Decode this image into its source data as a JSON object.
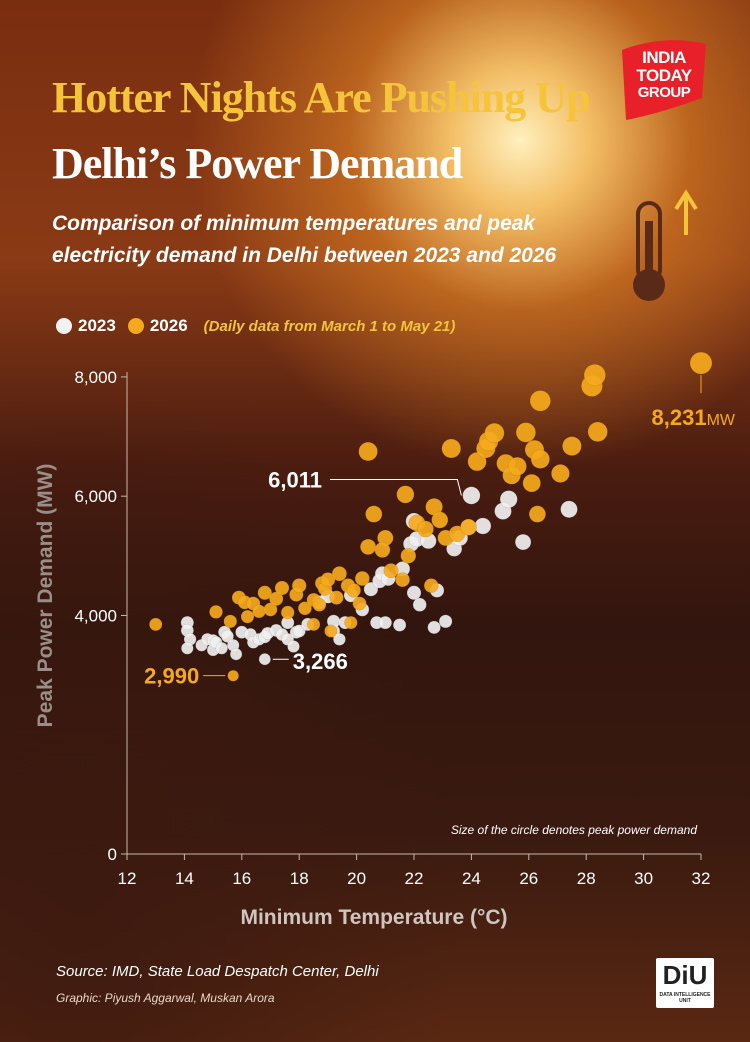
{
  "header": {
    "title_line1": "Hotter Nights Are Pushing Up",
    "title_line2": "Delhi’s Power Demand",
    "subtitle": "Comparison of minimum temperatures and peak electricity demand in Delhi between 2023 and 2026"
  },
  "brand": {
    "logo_line1": "INDIA",
    "logo_line2": "TODAY",
    "logo_line3": "GROUP",
    "logo_color": "#e8202a",
    "diu_main": "DiU",
    "diu_sub": "DATA INTELLIGENCE UNIT"
  },
  "legend": {
    "items": [
      {
        "label": "2023",
        "color": "#f2f2f2"
      },
      {
        "label": "2026",
        "color": "#f5a91c"
      }
    ],
    "note": "(Daily data from March 1 to May 21)"
  },
  "footer": {
    "source": "Source: IMD, State Load Despatch Center, Delhi",
    "credit": "Graphic: Piyush Aggarwal, Muskan Arora"
  },
  "chart_data": {
    "type": "scatter",
    "xlabel": "Minimum Temperature (°C)",
    "ylabel": "Peak Power Demand (MW)",
    "xlim": [
      12,
      32
    ],
    "ylim": [
      0,
      8250
    ],
    "x_ticks": [
      12,
      14,
      16,
      18,
      20,
      22,
      24,
      26,
      28,
      30,
      32
    ],
    "x_tick_labels": [
      "12",
      "14",
      "16",
      "18",
      "20",
      "22",
      "24",
      "26",
      "28",
      "30",
      "32"
    ],
    "y_ticks": [
      0,
      4000,
      6000,
      8000
    ],
    "y_tick_labels": [
      "0",
      "4,000",
      "6,000",
      "8,000"
    ],
    "size_note": "Size of the circle denotes peak power demand",
    "annotations": [
      {
        "x": 32.0,
        "y": 8231,
        "value": "8,231",
        "unit": "MW",
        "series": "2026"
      },
      {
        "x": 24.0,
        "y": 6011,
        "value": "6,011",
        "unit": "",
        "series": "2023"
      },
      {
        "x": 16.8,
        "y": 3266,
        "value": "3,266",
        "unit": "",
        "series": "2023"
      },
      {
        "x": 15.7,
        "y": 2990,
        "value": "2,990",
        "unit": "",
        "series": "2026"
      }
    ],
    "series": [
      {
        "name": "2023",
        "color": "#f0f0f0",
        "points": [
          [
            14.1,
            3880
          ],
          [
            14.1,
            3750
          ],
          [
            14.2,
            3600
          ],
          [
            14.1,
            3450
          ],
          [
            14.6,
            3500
          ],
          [
            14.8,
            3600
          ],
          [
            15.0,
            3580
          ],
          [
            15.0,
            3420
          ],
          [
            15.1,
            3550
          ],
          [
            15.3,
            3450
          ],
          [
            15.4,
            3720
          ],
          [
            15.5,
            3650
          ],
          [
            15.7,
            3500
          ],
          [
            15.8,
            3350
          ],
          [
            16.0,
            3720
          ],
          [
            16.3,
            3680
          ],
          [
            16.4,
            3550
          ],
          [
            16.6,
            3600
          ],
          [
            16.8,
            3640
          ],
          [
            16.9,
            3700
          ],
          [
            17.2,
            3750
          ],
          [
            17.4,
            3680
          ],
          [
            17.6,
            3880
          ],
          [
            17.6,
            3600
          ],
          [
            17.9,
            3720
          ],
          [
            17.8,
            3480
          ],
          [
            18.0,
            3740
          ],
          [
            18.3,
            3850
          ],
          [
            16.8,
            3266
          ],
          [
            18.7,
            4220
          ],
          [
            19.0,
            4320
          ],
          [
            19.2,
            3740
          ],
          [
            19.4,
            3600
          ],
          [
            19.2,
            3900
          ],
          [
            19.6,
            3880
          ],
          [
            19.8,
            4340
          ],
          [
            20.2,
            4100
          ],
          [
            20.5,
            4440
          ],
          [
            20.8,
            4580
          ],
          [
            20.7,
            3880
          ],
          [
            20.9,
            4700
          ],
          [
            21.1,
            4620
          ],
          [
            21.0,
            3880
          ],
          [
            21.5,
            3840
          ],
          [
            21.6,
            4780
          ],
          [
            21.9,
            5200
          ],
          [
            22.0,
            5580
          ],
          [
            22.1,
            5280
          ],
          [
            22.0,
            4380
          ],
          [
            22.2,
            4180
          ],
          [
            22.5,
            5250
          ],
          [
            22.8,
            4420
          ],
          [
            22.7,
            3800
          ],
          [
            23.1,
            3900
          ],
          [
            23.4,
            5120
          ],
          [
            23.6,
            5300
          ],
          [
            23.9,
            5480
          ],
          [
            24.0,
            6011
          ],
          [
            24.4,
            5500
          ],
          [
            25.1,
            5750
          ],
          [
            25.3,
            5950
          ],
          [
            25.8,
            5230
          ],
          [
            27.4,
            5780
          ]
        ]
      },
      {
        "name": "2026",
        "color": "#f5a91c",
        "points": [
          [
            13.0,
            3850
          ],
          [
            15.7,
            2990
          ],
          [
            15.1,
            4060
          ],
          [
            15.6,
            3900
          ],
          [
            15.9,
            4300
          ],
          [
            16.1,
            4220
          ],
          [
            16.2,
            3980
          ],
          [
            16.4,
            4200
          ],
          [
            16.6,
            4070
          ],
          [
            16.8,
            4380
          ],
          [
            17.0,
            4100
          ],
          [
            17.2,
            4280
          ],
          [
            17.4,
            4460
          ],
          [
            17.6,
            4050
          ],
          [
            17.9,
            4350
          ],
          [
            18.0,
            4500
          ],
          [
            18.2,
            4120
          ],
          [
            18.5,
            4260
          ],
          [
            18.7,
            4180
          ],
          [
            18.8,
            4540
          ],
          [
            18.9,
            4450
          ],
          [
            19.0,
            4600
          ],
          [
            19.3,
            4300
          ],
          [
            19.4,
            4700
          ],
          [
            19.7,
            4500
          ],
          [
            19.9,
            4420
          ],
          [
            20.1,
            4200
          ],
          [
            20.2,
            4620
          ],
          [
            20.4,
            5150
          ],
          [
            20.6,
            5700
          ],
          [
            21.0,
            5300
          ],
          [
            20.9,
            5100
          ],
          [
            21.2,
            4750
          ],
          [
            21.6,
            4600
          ],
          [
            21.8,
            5000
          ],
          [
            21.7,
            6030
          ],
          [
            22.1,
            5550
          ],
          [
            22.4,
            5450
          ],
          [
            22.7,
            5820
          ],
          [
            22.9,
            5600
          ],
          [
            23.1,
            5300
          ],
          [
            23.5,
            5370
          ],
          [
            23.9,
            5480
          ],
          [
            23.3,
            6800
          ],
          [
            24.2,
            6580
          ],
          [
            24.5,
            6800
          ],
          [
            24.6,
            6920
          ],
          [
            24.8,
            7060
          ],
          [
            25.2,
            6550
          ],
          [
            25.4,
            6350
          ],
          [
            25.6,
            6500
          ],
          [
            25.9,
            7070
          ],
          [
            26.1,
            6220
          ],
          [
            26.2,
            6780
          ],
          [
            26.4,
            6620
          ],
          [
            26.3,
            5700
          ],
          [
            26.4,
            7600
          ],
          [
            27.1,
            6380
          ],
          [
            27.5,
            6840
          ],
          [
            28.2,
            7850
          ],
          [
            28.3,
            8030
          ],
          [
            28.4,
            7080
          ],
          [
            32.0,
            8231
          ],
          [
            20.4,
            6750
          ],
          [
            19.1,
            3740
          ],
          [
            19.8,
            3880
          ],
          [
            18.5,
            3850
          ],
          [
            22.6,
            4500
          ]
        ]
      }
    ]
  }
}
